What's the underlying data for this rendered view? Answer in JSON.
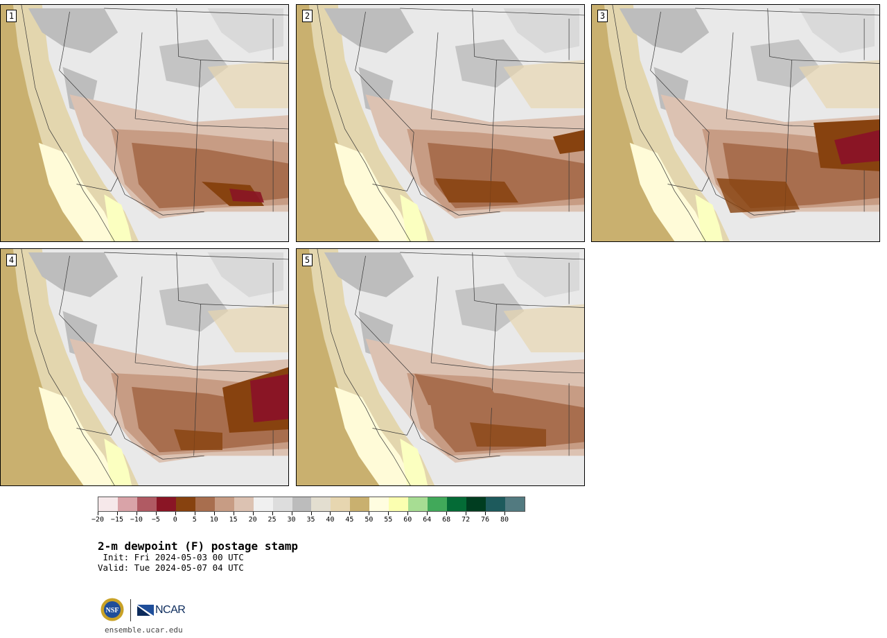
{
  "panels": [
    {
      "label": "1"
    },
    {
      "label": "2"
    },
    {
      "label": "3"
    },
    {
      "label": "4"
    },
    {
      "label": "5"
    }
  ],
  "colorbar": {
    "colors": [
      "#f6e8ea",
      "#d9a3a8",
      "#b05a63",
      "#8a1525",
      "#87420f",
      "#a86e4e",
      "#c79c84",
      "#dcc2b2",
      "#f0f0f0",
      "#dddddd",
      "#bcbcbc",
      "#e3ded0",
      "#e7d6b0",
      "#c9b06f",
      "#fffde0",
      "#fbffb0",
      "#a7dd93",
      "#41a95a",
      "#046b36",
      "#003d20",
      "#1d5a5c",
      "#527a80"
    ],
    "tick_labels": [
      "−20",
      "−15",
      "−10",
      "−5",
      "0",
      "5",
      "10",
      "15",
      "20",
      "25",
      "30",
      "35",
      "40",
      "45",
      "50",
      "55",
      "60",
      "64",
      "68",
      "72",
      "76",
      "80"
    ]
  },
  "title": "2-m dewpoint (F) postage stamp",
  "init_line": " Init: Fri 2024-05-03 00 UTC",
  "valid_line": "Valid: Tue 2024-05-07 04 UTC",
  "logo": {
    "nsf": "NSF",
    "ncar": "NCAR"
  },
  "site": "ensemble.ucar.edu"
}
